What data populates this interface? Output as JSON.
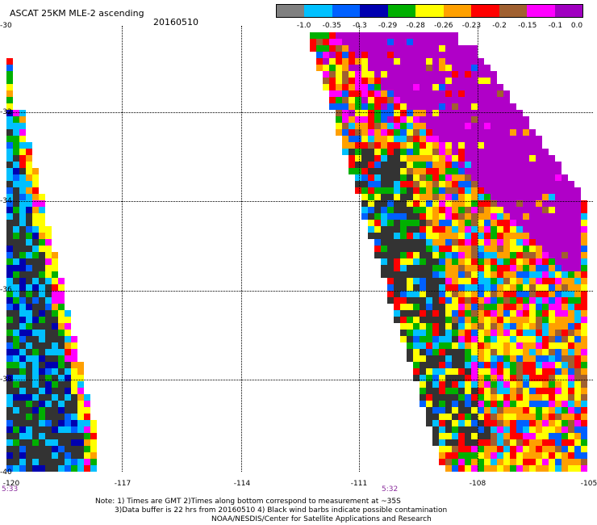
{
  "header": {
    "title": "ASCAT 25KM MLE-2 ascending",
    "date": "20160510"
  },
  "colorbar": {
    "colors": [
      "#808080",
      "#00c0ff",
      "#0060ff",
      "#0000b0",
      "#00b000",
      "#ffff00",
      "#ffa000",
      "#ff0000",
      "#a06030",
      "#ff00ff",
      "#a000c0"
    ],
    "tick_labels": [
      "-1.0",
      "-0.35",
      "-0.3",
      "-0.29",
      "-0.28",
      "-0.26",
      "-0.23",
      "-0.2",
      "-0.15",
      "-0.1",
      "0.0"
    ]
  },
  "map": {
    "lat_labels": [
      "-30",
      "-32",
      "-34",
      "-36",
      "-38",
      "-40"
    ],
    "lon_labels": [
      "-120",
      "-117",
      "-114",
      "-111",
      "-108",
      "-105"
    ],
    "swath_times": [
      "5:33",
      "5:32"
    ]
  },
  "notes": {
    "line1": "Note: 1) Times are GMT 2)Times along bottom correspond to measurement at ~35S",
    "line2": "3)Data buffer is 22 hrs from 20160510 4) Black wind barbs indicate possible contamination",
    "line3": "NOAA/NESDIS/Center for Satellite Applications and Research"
  }
}
